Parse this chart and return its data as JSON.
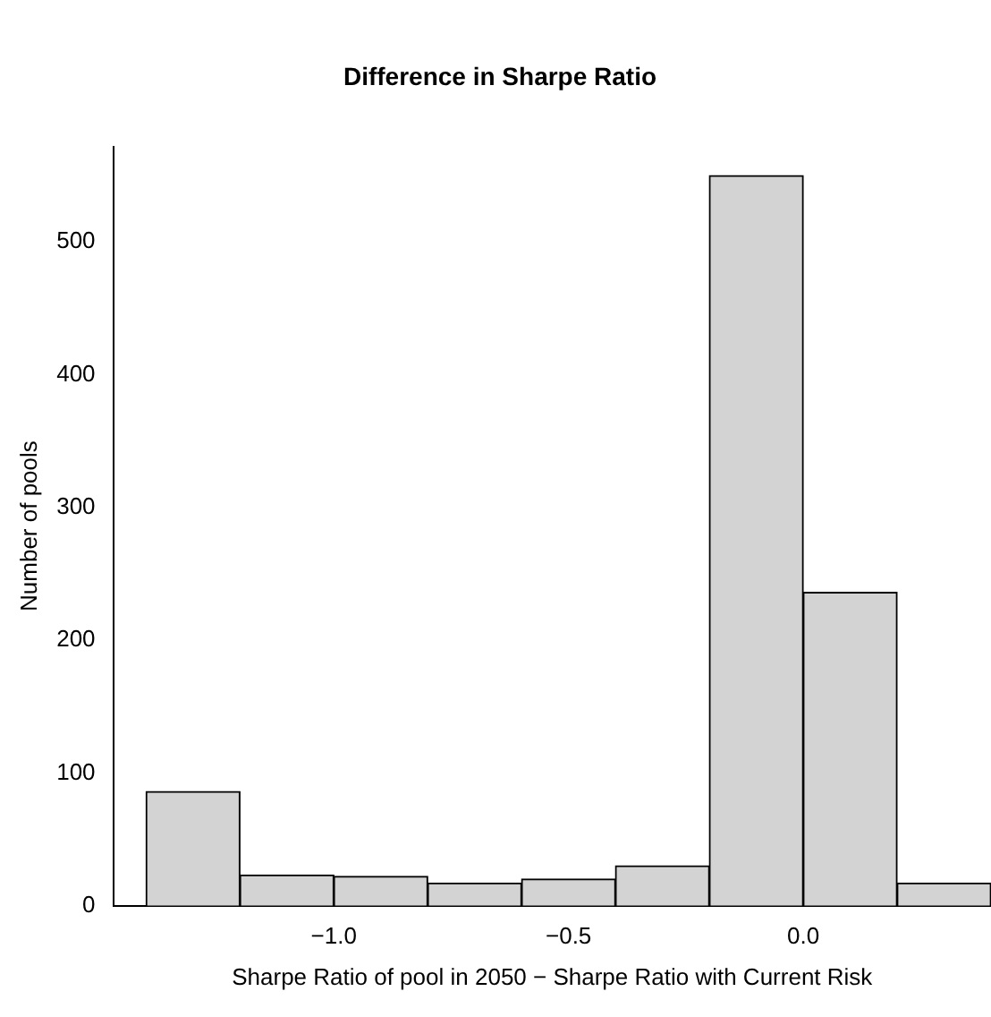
{
  "chart_data": {
    "type": "histogram",
    "title": "Difference in Sharpe Ratio",
    "xlabel": "Sharpe Ratio of pool in 2050 − Sharpe Ratio with Current Risk",
    "ylabel": "Number of pools",
    "bins": [
      -1.4,
      -1.2,
      -1.0,
      -0.8,
      -0.6,
      -0.4,
      -0.2,
      0.0,
      0.2,
      0.4
    ],
    "values": [
      86,
      23,
      22,
      17,
      20,
      30,
      550,
      236,
      17
    ],
    "color": "#d3d3d3",
    "xlim": [
      -1.47,
      0.4
    ],
    "xticks": [
      {
        "value": -1.0,
        "label": "−1.0"
      },
      {
        "value": -0.5,
        "label": "−0.5"
      },
      {
        "value": 0.0,
        "label": "0.0"
      }
    ],
    "ylim": [
      0,
      572
    ],
    "yticks": [
      0,
      100,
      200,
      300,
      400,
      500
    ],
    "grid": false,
    "legend": false
  }
}
